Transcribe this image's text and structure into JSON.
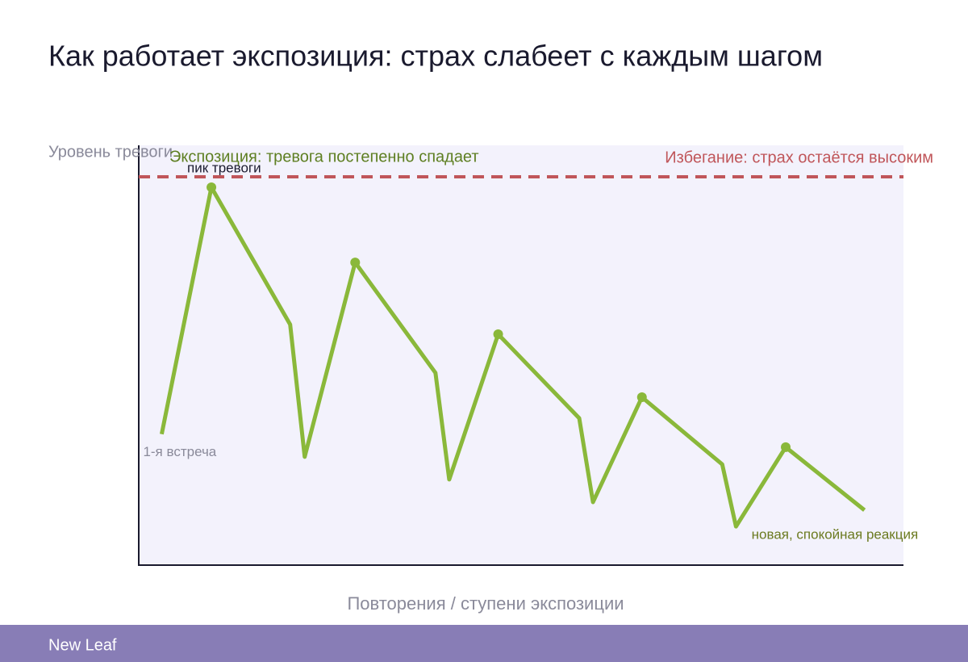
{
  "chart_data": {
    "type": "line",
    "title": "Как работает экспозиция: страх слабеет с каждым шагом",
    "y_label": "Уровень тревоги",
    "x_label": "Повторения / ступени экспозиции",
    "xlim": [
      0,
      100
    ],
    "ylim": [
      0,
      100
    ],
    "x": [
      3,
      9.5,
      19.8,
      21.7,
      28.3,
      38.8,
      40.6,
      47,
      57.6,
      59.4,
      65.8,
      76.3,
      78.1,
      84.6,
      94.9
    ],
    "series": [
      {
        "name": "Экспозиция: тревога постепенно спадает",
        "color": "#8ab83a",
        "values": [
          31.2,
          90,
          57.3,
          25.8,
          72.1,
          45.8,
          20.4,
          55,
          35,
          15,
          40,
          24,
          9.2,
          28.1,
          13.1
        ],
        "markers": [
          1,
          4,
          7,
          10,
          13
        ]
      },
      {
        "name": "Избегание: страх остаётся высоким",
        "color": "#c0565a",
        "style": "dashed",
        "value": 92.5
      }
    ],
    "annotations": [
      {
        "text": "1-я встреча",
        "point": 0
      },
      {
        "text": "пик тревоги",
        "point": 1
      },
      {
        "text": "новая, спокойная реакция",
        "point": 14
      }
    ],
    "footer": "New Leaf"
  }
}
